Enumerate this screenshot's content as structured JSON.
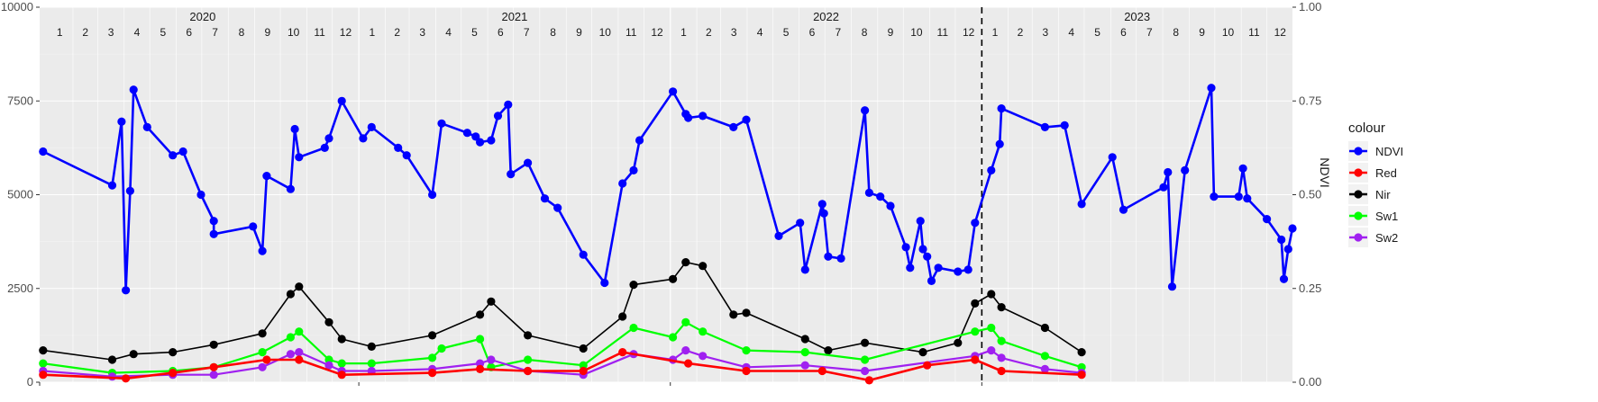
{
  "chart_data": {
    "type": "line",
    "title": "",
    "xlabel": "",
    "ylabel": "",
    "y2label": "NDVI",
    "ylim": [
      0,
      10000
    ],
    "y2lim": [
      0,
      1
    ],
    "yticks": [
      0,
      2500,
      5000,
      7500,
      10000
    ],
    "yticklabels": [
      "0",
      "2500",
      "5000",
      "7500",
      "10000"
    ],
    "y2ticks": [
      0,
      0.25,
      0.5,
      0.75,
      1
    ],
    "y2ticklabels": [
      "0.00",
      "0.25",
      "0.50",
      "0.75",
      "1.00"
    ],
    "xlim": [
      "2019-12-24",
      "2023-12-31"
    ],
    "years": [
      {
        "label": "2020",
        "start": "2020-01-01",
        "end": "2021-01-01"
      },
      {
        "label": "2021",
        "start": "2021-01-01",
        "end": "2022-01-01"
      },
      {
        "label": "2022",
        "start": "2022-01-01",
        "end": "2023-01-01"
      },
      {
        "label": "2023",
        "start": "2023-01-01",
        "end": "2024-01-01"
      }
    ],
    "month_labels": [
      "1",
      "2",
      "3",
      "4",
      "5",
      "6",
      "7",
      "8",
      "9",
      "10",
      "11",
      "12"
    ],
    "vline": "2023-01-01",
    "grid": true,
    "legend": {
      "title": "colour",
      "position": "right"
    },
    "series": [
      {
        "name": "NDVI",
        "color": "#0000ff",
        "width": 2.6,
        "points": [
          [
            "2019-12-28",
            6150
          ],
          [
            "2020-03-18",
            5250
          ],
          [
            "2020-03-29",
            6950
          ],
          [
            "2020-04-03",
            2450
          ],
          [
            "2020-04-08",
            5100
          ],
          [
            "2020-04-12",
            7800
          ],
          [
            "2020-04-28",
            6800
          ],
          [
            "2020-05-28",
            6050
          ],
          [
            "2020-06-09",
            6150
          ],
          [
            "2020-06-30",
            5000
          ],
          [
            "2020-07-15",
            4300
          ],
          [
            "2020-07-15",
            3950
          ],
          [
            "2020-08-30",
            4150
          ],
          [
            "2020-09-10",
            3500
          ],
          [
            "2020-09-15",
            5500
          ],
          [
            "2020-10-13",
            5150
          ],
          [
            "2020-10-18",
            6750
          ],
          [
            "2020-10-23",
            6000
          ],
          [
            "2020-11-22",
            6250
          ],
          [
            "2020-11-27",
            6500
          ],
          [
            "2020-12-12",
            7500
          ],
          [
            "2021-01-06",
            6500
          ],
          [
            "2021-01-16",
            6800
          ],
          [
            "2021-02-16",
            6250
          ],
          [
            "2021-02-26",
            6050
          ],
          [
            "2021-03-28",
            5000
          ],
          [
            "2021-04-08",
            6900
          ],
          [
            "2021-05-08",
            6650
          ],
          [
            "2021-05-18",
            6550
          ],
          [
            "2021-05-23",
            6400
          ],
          [
            "2021-06-05",
            6450
          ],
          [
            "2021-06-13",
            7100
          ],
          [
            "2021-06-25",
            7400
          ],
          [
            "2021-06-28",
            5550
          ],
          [
            "2021-07-18",
            5850
          ],
          [
            "2021-08-07",
            4900
          ],
          [
            "2021-08-22",
            4650
          ],
          [
            "2021-09-21",
            3400
          ],
          [
            "2021-10-16",
            2650
          ],
          [
            "2021-11-06",
            5300
          ],
          [
            "2021-11-19",
            5650
          ],
          [
            "2021-11-26",
            6450
          ],
          [
            "2022-01-04",
            7750
          ],
          [
            "2022-01-19",
            7150
          ],
          [
            "2022-01-22",
            7050
          ],
          [
            "2022-02-08",
            7100
          ],
          [
            "2022-03-16",
            6800
          ],
          [
            "2022-03-31",
            7000
          ],
          [
            "2022-05-08",
            3900
          ],
          [
            "2022-06-02",
            4250
          ],
          [
            "2022-06-08",
            3000
          ],
          [
            "2022-06-28",
            4750
          ],
          [
            "2022-06-30",
            4500
          ],
          [
            "2022-07-05",
            3350
          ],
          [
            "2022-07-20",
            3300
          ],
          [
            "2022-08-17",
            7250
          ],
          [
            "2022-08-22",
            5050
          ],
          [
            "2022-09-04",
            4950
          ],
          [
            "2022-09-16",
            4700
          ],
          [
            "2022-10-04",
            3600
          ],
          [
            "2022-10-09",
            3050
          ],
          [
            "2022-10-21",
            4300
          ],
          [
            "2022-10-24",
            3550
          ],
          [
            "2022-10-29",
            3350
          ],
          [
            "2022-11-03",
            2700
          ],
          [
            "2022-11-11",
            3050
          ],
          [
            "2022-12-04",
            2950
          ],
          [
            "2022-12-16",
            3000
          ],
          [
            "2022-12-24",
            4250
          ],
          [
            "2023-01-12",
            5650
          ],
          [
            "2023-01-22",
            6350
          ],
          [
            "2023-01-24",
            7300
          ],
          [
            "2023-03-16",
            6800
          ],
          [
            "2023-04-08",
            6850
          ],
          [
            "2023-04-28",
            4750
          ],
          [
            "2023-06-03",
            6000
          ],
          [
            "2023-06-16",
            4600
          ],
          [
            "2023-08-02",
            5200
          ],
          [
            "2023-08-07",
            5600
          ],
          [
            "2023-08-12",
            2550
          ],
          [
            "2023-08-27",
            5650
          ],
          [
            "2023-09-27",
            7850
          ],
          [
            "2023-09-30",
            4950
          ],
          [
            "2023-10-29",
            4950
          ],
          [
            "2023-11-03",
            5700
          ],
          [
            "2023-11-08",
            4900
          ],
          [
            "2023-12-01",
            4350
          ],
          [
            "2023-12-18",
            3800
          ],
          [
            "2023-12-21",
            2750
          ],
          [
            "2023-12-26",
            3550
          ],
          [
            "2023-12-31",
            4100
          ]
        ]
      },
      {
        "name": "Red",
        "color": "#ff0000",
        "width": 2.6,
        "points": [
          [
            "2019-12-28",
            200
          ],
          [
            "2020-04-03",
            100
          ],
          [
            "2020-05-28",
            250
          ],
          [
            "2020-07-15",
            400
          ],
          [
            "2020-09-15",
            600
          ],
          [
            "2020-10-23",
            600
          ],
          [
            "2020-12-12",
            200
          ],
          [
            "2021-03-28",
            250
          ],
          [
            "2021-05-23",
            350
          ],
          [
            "2021-07-18",
            300
          ],
          [
            "2021-09-21",
            300
          ],
          [
            "2021-11-06",
            800
          ],
          [
            "2022-01-22",
            500
          ],
          [
            "2022-03-31",
            300
          ],
          [
            "2022-06-28",
            300
          ],
          [
            "2022-08-22",
            50
          ],
          [
            "2022-10-29",
            450
          ],
          [
            "2022-12-24",
            600
          ],
          [
            "2023-01-24",
            300
          ],
          [
            "2023-04-28",
            200
          ]
        ]
      },
      {
        "name": "Nir",
        "color": "#000000",
        "width": 1.6,
        "points": [
          [
            "2019-12-28",
            850
          ],
          [
            "2020-03-18",
            600
          ],
          [
            "2020-04-12",
            750
          ],
          [
            "2020-05-28",
            800
          ],
          [
            "2020-07-15",
            1000
          ],
          [
            "2020-09-10",
            1300
          ],
          [
            "2020-10-13",
            2350
          ],
          [
            "2020-10-23",
            2550
          ],
          [
            "2020-11-27",
            1600
          ],
          [
            "2020-12-12",
            1150
          ],
          [
            "2021-01-16",
            950
          ],
          [
            "2021-03-28",
            1250
          ],
          [
            "2021-05-23",
            1800
          ],
          [
            "2021-06-05",
            2150
          ],
          [
            "2021-07-18",
            1250
          ],
          [
            "2021-09-21",
            900
          ],
          [
            "2021-11-06",
            1750
          ],
          [
            "2021-11-19",
            2600
          ],
          [
            "2022-01-04",
            2750
          ],
          [
            "2022-01-19",
            3200
          ],
          [
            "2022-02-08",
            3100
          ],
          [
            "2022-03-16",
            1800
          ],
          [
            "2022-03-31",
            1850
          ],
          [
            "2022-06-08",
            1150
          ],
          [
            "2022-07-05",
            850
          ],
          [
            "2022-08-17",
            1050
          ],
          [
            "2022-10-24",
            800
          ],
          [
            "2022-12-04",
            1050
          ],
          [
            "2022-12-24",
            2100
          ],
          [
            "2023-01-12",
            2350
          ],
          [
            "2023-01-24",
            2000
          ],
          [
            "2023-03-16",
            1450
          ],
          [
            "2023-04-28",
            800
          ]
        ]
      },
      {
        "name": "Sw1",
        "color": "#00ff00",
        "width": 2.2,
        "points": [
          [
            "2019-12-28",
            500
          ],
          [
            "2020-03-18",
            250
          ],
          [
            "2020-05-28",
            300
          ],
          [
            "2020-07-15",
            400
          ],
          [
            "2020-09-10",
            800
          ],
          [
            "2020-10-13",
            1200
          ],
          [
            "2020-10-23",
            1350
          ],
          [
            "2020-11-27",
            600
          ],
          [
            "2020-12-12",
            500
          ],
          [
            "2021-01-16",
            500
          ],
          [
            "2021-03-28",
            650
          ],
          [
            "2021-04-08",
            900
          ],
          [
            "2021-05-23",
            1150
          ],
          [
            "2021-06-05",
            400
          ],
          [
            "2021-07-18",
            600
          ],
          [
            "2021-09-21",
            450
          ],
          [
            "2021-11-19",
            1450
          ],
          [
            "2022-01-04",
            1200
          ],
          [
            "2022-01-19",
            1600
          ],
          [
            "2022-02-08",
            1350
          ],
          [
            "2022-03-31",
            850
          ],
          [
            "2022-06-08",
            800
          ],
          [
            "2022-08-17",
            600
          ],
          [
            "2022-12-24",
            1350
          ],
          [
            "2023-01-12",
            1450
          ],
          [
            "2023-01-24",
            1100
          ],
          [
            "2023-03-16",
            700
          ],
          [
            "2023-04-28",
            400
          ]
        ]
      },
      {
        "name": "Sw2",
        "color": "#a020f0",
        "width": 2.2,
        "points": [
          [
            "2019-12-28",
            300
          ],
          [
            "2020-03-18",
            150
          ],
          [
            "2020-05-28",
            200
          ],
          [
            "2020-07-15",
            200
          ],
          [
            "2020-09-10",
            400
          ],
          [
            "2020-10-13",
            750
          ],
          [
            "2020-10-23",
            800
          ],
          [
            "2020-11-27",
            450
          ],
          [
            "2020-12-12",
            300
          ],
          [
            "2021-01-16",
            300
          ],
          [
            "2021-03-28",
            350
          ],
          [
            "2021-05-23",
            500
          ],
          [
            "2021-06-05",
            600
          ],
          [
            "2021-07-18",
            300
          ],
          [
            "2021-09-21",
            200
          ],
          [
            "2021-11-19",
            750
          ],
          [
            "2022-01-04",
            600
          ],
          [
            "2022-01-19",
            850
          ],
          [
            "2022-02-08",
            700
          ],
          [
            "2022-03-31",
            400
          ],
          [
            "2022-06-08",
            450
          ],
          [
            "2022-08-17",
            300
          ],
          [
            "2022-12-24",
            700
          ],
          [
            "2023-01-12",
            850
          ],
          [
            "2023-01-24",
            650
          ],
          [
            "2023-03-16",
            350
          ],
          [
            "2023-04-28",
            250
          ]
        ]
      }
    ]
  }
}
